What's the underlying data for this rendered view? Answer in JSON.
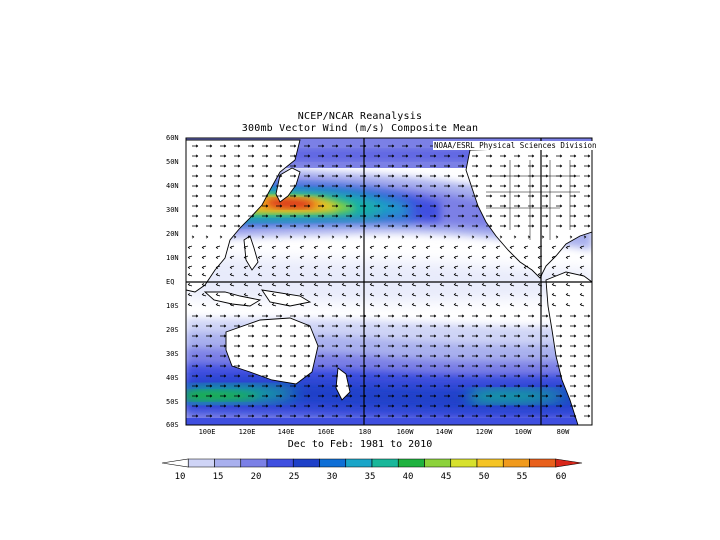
{
  "title": "NCEP/NCAR Reanalysis",
  "subtitle": "300mb Vector Wind (m/s) Composite Mean",
  "source_label": "NOAA/ESRL Physical Sciences Division",
  "period_label": "Dec to Feb: 1981 to 2010",
  "lat_labels": [
    "60N",
    "50N",
    "40N",
    "30N",
    "20N",
    "10N",
    "EQ",
    "10S",
    "20S",
    "30S",
    "40S",
    "50S",
    "60S"
  ],
  "lon_labels": [
    "100E",
    "120E",
    "140E",
    "160E",
    "180",
    "160W",
    "140W",
    "120W",
    "100W",
    "80W"
  ],
  "colorbar": {
    "ticks": [
      "10",
      "15",
      "20",
      "25",
      "30",
      "35",
      "40",
      "45",
      "50",
      "55",
      "60"
    ],
    "colors": [
      "#ffffff",
      "#cfd4f6",
      "#a9b0ee",
      "#7b80e6",
      "#3f4fe0",
      "#1e40c8",
      "#0f6fd6",
      "#1aa5c8",
      "#19b79a",
      "#1fb23f",
      "#8cd23b",
      "#d7e12e",
      "#f5c425",
      "#f09a1d",
      "#e8601c",
      "#d8261a"
    ]
  },
  "map_colors": {
    "land": "#ffffff",
    "coast": "#000000",
    "grid": "#000000"
  }
}
